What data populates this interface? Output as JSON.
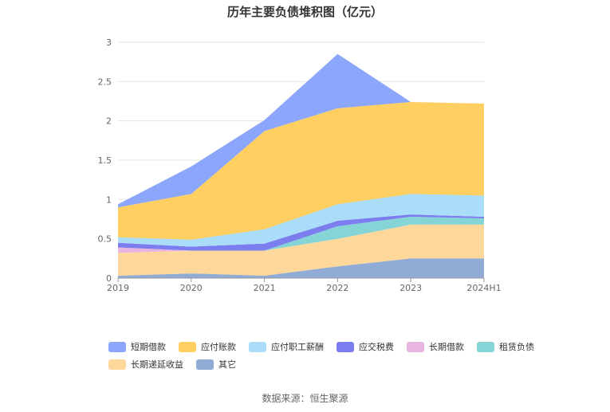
{
  "chart_data": {
    "type": "area",
    "stacked": true,
    "title": "历年主要负债堆积图（亿元）",
    "x": [
      "2019",
      "2020",
      "2021",
      "2022",
      "2023",
      "2024H1"
    ],
    "ylim": [
      0,
      3
    ],
    "yticks": [
      "0",
      "0.5",
      "1",
      "1.5",
      "2",
      "2.5",
      "3"
    ],
    "grid": true,
    "legend_position": "bottom",
    "series": [
      {
        "name": "其它",
        "color": "#8fabd6",
        "values": [
          0.03,
          0.06,
          0.03,
          0.15,
          0.25,
          0.25
        ]
      },
      {
        "name": "长期递延收益",
        "color": "#fdd89a",
        "values": [
          0.29,
          0.29,
          0.32,
          0.35,
          0.43,
          0.43
        ]
      },
      {
        "name": "租赁负债",
        "color": "#86d5d6",
        "values": [
          0.0,
          0.0,
          0.0,
          0.16,
          0.1,
          0.08
        ]
      },
      {
        "name": "长期借款",
        "color": "#e7b5e0",
        "values": [
          0.07,
          0.0,
          0.0,
          0.0,
          0.0,
          0.0
        ]
      },
      {
        "name": "应交税费",
        "color": "#7c7ef0",
        "values": [
          0.06,
          0.05,
          0.09,
          0.07,
          0.03,
          0.02
        ]
      },
      {
        "name": "应付职工薪酬",
        "color": "#a9ddfa",
        "values": [
          0.07,
          0.09,
          0.18,
          0.21,
          0.26,
          0.27
        ]
      },
      {
        "name": "应付账款",
        "color": "#ffd061",
        "values": [
          0.38,
          0.58,
          1.25,
          1.22,
          1.17,
          1.17
        ]
      },
      {
        "name": "短期借款",
        "color": "#8ba6fa",
        "values": [
          0.04,
          0.35,
          0.14,
          0.69,
          0.0,
          0.0
        ]
      }
    ],
    "legend_order": [
      "短期借款",
      "应付账款",
      "应付职工薪酬",
      "应交税费",
      "长期借款",
      "租赁负债",
      "长期递延收益",
      "其它"
    ]
  },
  "source_text": "数据来源：恒生聚源"
}
